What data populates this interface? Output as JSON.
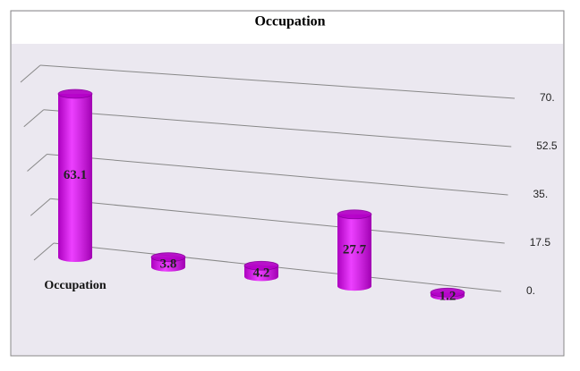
{
  "chart_data": {
    "type": "bar",
    "title": "Occupation",
    "categories": [
      "Occupation",
      null,
      null,
      null,
      null
    ],
    "values": [
      63.1,
      3.8,
      4.2,
      27.7,
      1.2
    ],
    "color": "#e600ff",
    "ylim": [
      0,
      70
    ],
    "yticks": [
      {
        "value": 0,
        "label": "0."
      },
      17.5,
      {
        "value": 35,
        "label": "35."
      },
      52.5,
      {
        "value": 70,
        "label": "70."
      }
    ],
    "grid": true
  }
}
